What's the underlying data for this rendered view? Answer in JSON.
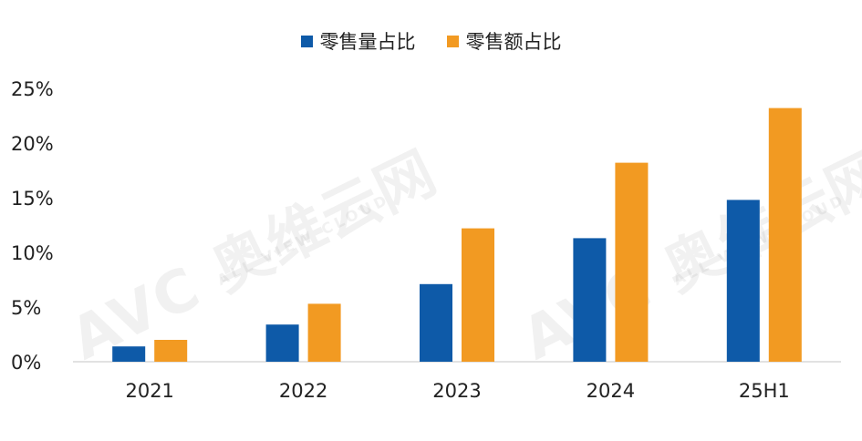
{
  "chart_data": {
    "type": "bar",
    "categories": [
      "2021",
      "2022",
      "2023",
      "2024",
      "25H1"
    ],
    "series": [
      {
        "name": "零售量占比",
        "color": "#0e5aa8",
        "values": [
          1.4,
          3.4,
          7.1,
          11.3,
          14.8
        ]
      },
      {
        "name": "零售额占比",
        "color": "#f29a22",
        "values": [
          2.0,
          5.3,
          12.2,
          18.2,
          23.2
        ]
      }
    ],
    "ylim": [
      0,
      25
    ],
    "yticks": [
      0,
      5,
      10,
      15,
      20,
      25
    ],
    "ytick_suffix": "%",
    "grid": false,
    "legend_position": "top-center"
  },
  "watermark": {
    "brand": "AVC",
    "cn_name": "奥维云网",
    "en_name": "ALL VIEW CLOUD"
  }
}
